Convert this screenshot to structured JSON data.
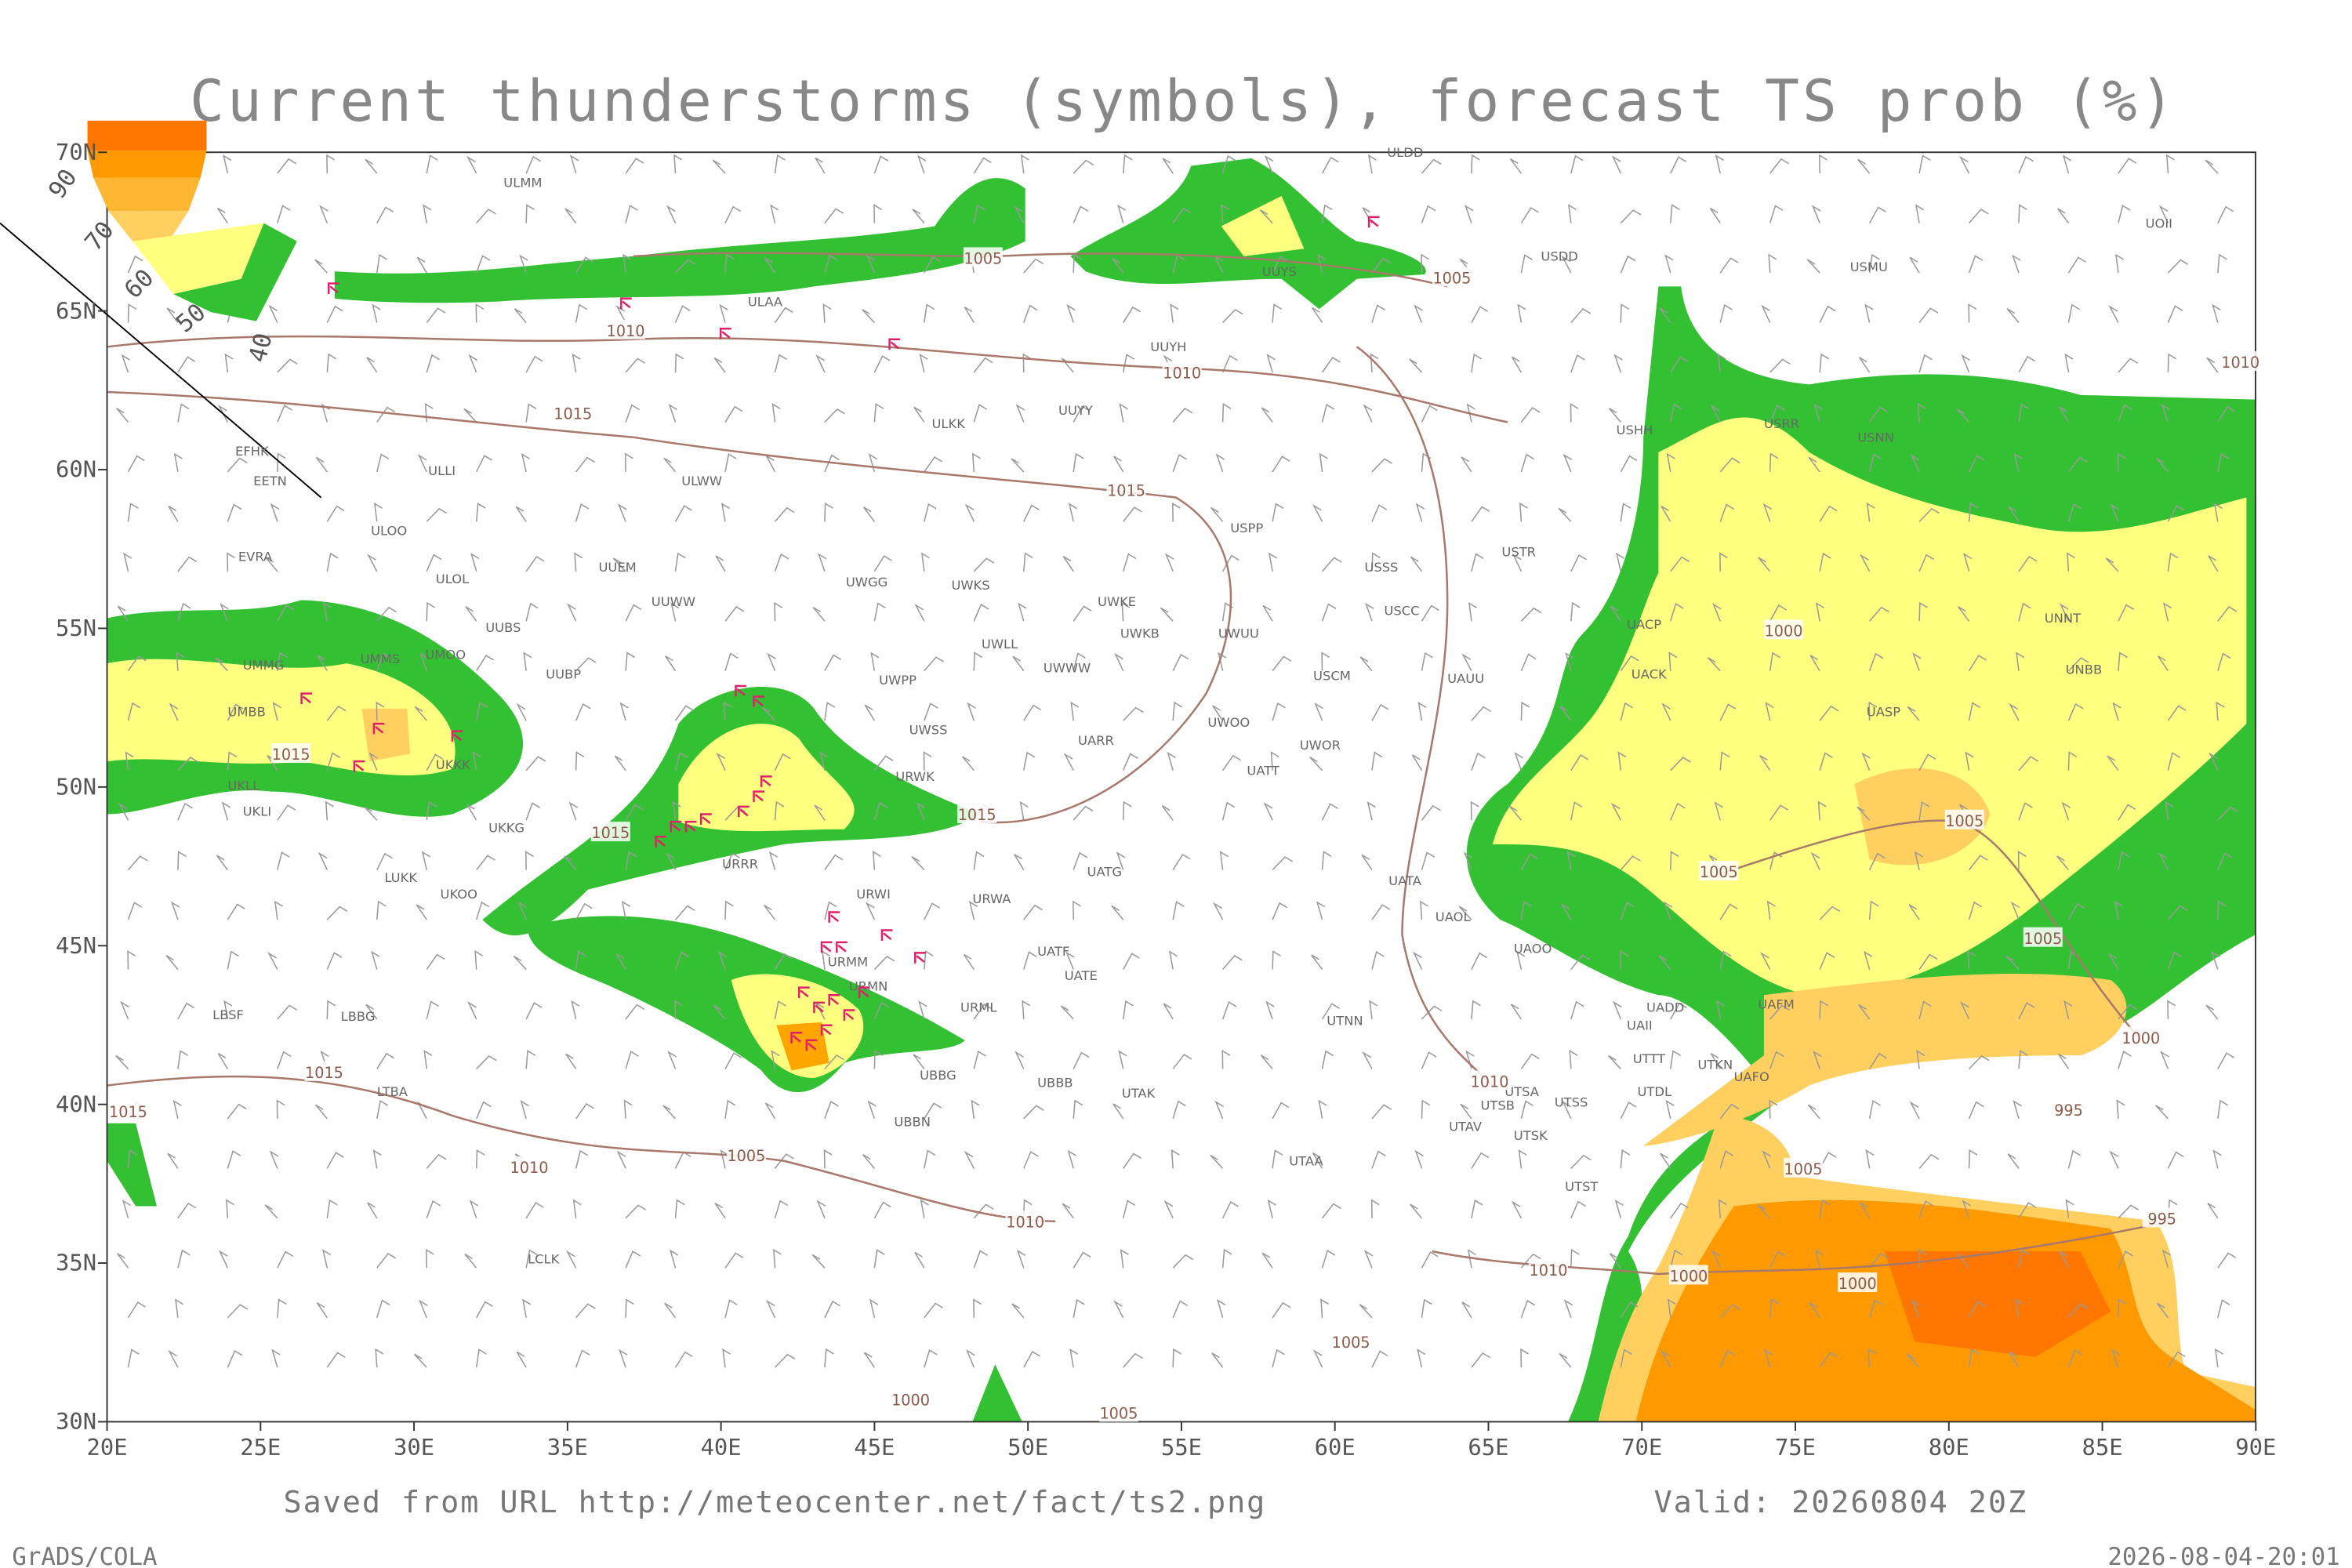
{
  "title": "Current thunderstorms (symbols), forecast TS prob (%)",
  "lat_labels": [
    "70N",
    "65N",
    "60N",
    "55N",
    "50N",
    "45N",
    "40N",
    "35N",
    "30N"
  ],
  "lon_labels": [
    "20E",
    "25E",
    "30E",
    "35E",
    "40E",
    "45E",
    "50E",
    "55E",
    "60E",
    "65E",
    "70E",
    "75E",
    "80E",
    "85E",
    "90E"
  ],
  "legend_labels": [
    "90",
    "70",
    "60",
    "50",
    "40"
  ],
  "stations": [
    "ULMM",
    "ULAA",
    "UUYH",
    "ULKK",
    "UUYY",
    "EFHK",
    "EETN",
    "ULLI",
    "ULWW",
    "ULOO",
    "EVRA",
    "UUEM",
    "ULOL",
    "UUWW",
    "UWGG",
    "UWKS",
    "UUBS",
    "UMMS",
    "UMOO",
    "UMMG",
    "UUBP",
    "UWPP",
    "UWWW",
    "UWKE",
    "UWKB",
    "UWLL",
    "UWUU",
    "USPP",
    "USSS",
    "USCC",
    "USTR",
    "USCM",
    "UAUU",
    "UWOO",
    "UWOR",
    "UATT",
    "UARR",
    "UWSS",
    "URWK",
    "UMBB",
    "UKLI",
    "UKLL",
    "UKKK",
    "UKKG",
    "URRR",
    "UATG",
    "URWI",
    "URWA",
    "UKOO",
    "LUKK",
    "UATA",
    "UAOL",
    "UAOO",
    "URMM",
    "URMN",
    "URML",
    "UATF",
    "UATE",
    "UTNN",
    "LBSF",
    "LBBG",
    "LTBA",
    "UBBB",
    "UTAK",
    "UBBG",
    "UBBN",
    "UTAA",
    "LCLK",
    "UADD",
    "UAII",
    "UAFM",
    "UTSA",
    "UTSB",
    "UTAV",
    "UTSS",
    "UTSK",
    "UTDL",
    "UTTT",
    "UAFO",
    "UTKN",
    "UTST",
    "UACK",
    "UACP",
    "UASP",
    "UNBB",
    "UNNT",
    "USDD",
    "USMU",
    "UOII",
    "ULDD",
    "UUYS",
    "USHH",
    "USRR",
    "USNN"
  ],
  "isobar_labels": [
    "1005",
    "1010",
    "1010",
    "1015",
    "1015",
    "1005",
    "1015",
    "1015",
    "1015",
    "1000",
    "1005",
    "1005",
    "1005",
    "1000",
    "995",
    "1010",
    "1015",
    "1015",
    "1010",
    "1005",
    "1010",
    "1010",
    "1005",
    "1005",
    "1000",
    "1000",
    "995",
    "1000",
    "1005",
    "1010"
  ],
  "footer": {
    "source": "Saved from URL http://meteocenter.net/fact/ts2.png",
    "valid": "Valid: 20260804 20Z",
    "credit": "GrADS/COLA",
    "timestamp": "2026-08-04-20:01"
  }
}
